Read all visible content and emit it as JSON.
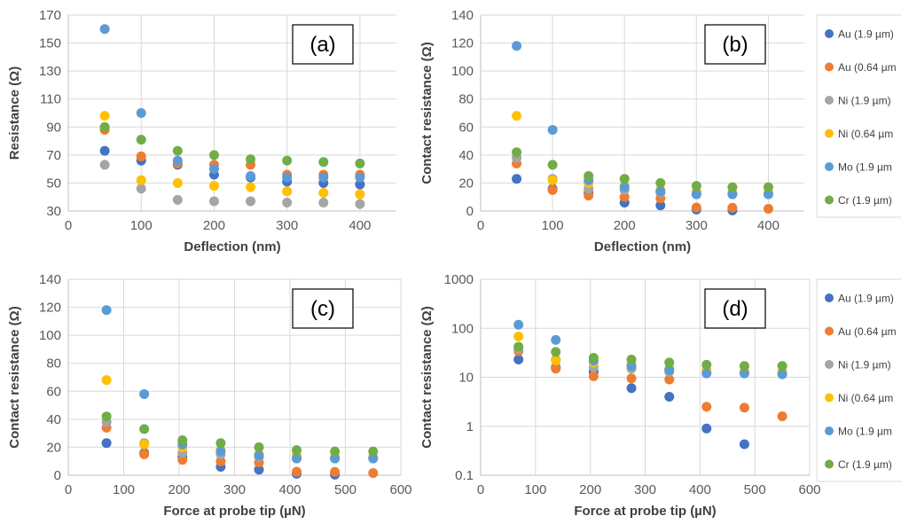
{
  "series_colors": [
    "#4472C4",
    "#ED7D31",
    "#A5A5A5",
    "#FFC000",
    "#5B9BD5",
    "#70AD47"
  ],
  "chart_data": [
    {
      "type": "scatter",
      "panel_label": "(a)",
      "xlabel": "Deflection (nm)",
      "ylabel": "Resistance (Ω)",
      "xlim": [
        0,
        450
      ],
      "ylim": [
        30,
        170
      ],
      "xticks": [
        "0",
        "100",
        "200",
        "300",
        "400"
      ],
      "yticks": [
        "30",
        "50",
        "70",
        "90",
        "110",
        "130",
        "150",
        "170"
      ],
      "grid": true,
      "log_y": false,
      "legend": [],
      "x": [
        50,
        100,
        150,
        200,
        250,
        300,
        350,
        400
      ],
      "series": [
        {
          "values": [
            73,
            66,
            63,
            56,
            54,
            51,
            50,
            49
          ]
        },
        {
          "values": [
            88,
            69,
            64,
            63,
            63,
            56,
            56,
            56
          ]
        },
        {
          "values": [
            63,
            46,
            38,
            37,
            37,
            36,
            36,
            35
          ]
        },
        {
          "values": [
            98,
            52,
            50,
            48,
            47,
            44,
            43,
            42
          ]
        },
        {
          "values": [
            160,
            100,
            66,
            60,
            55,
            54,
            54,
            54
          ]
        },
        {
          "values": [
            90,
            81,
            73,
            70,
            67,
            66,
            65,
            64
          ]
        }
      ]
    },
    {
      "type": "scatter",
      "panel_label": "(b)",
      "xlabel": "Deflection (nm)",
      "ylabel": "Contact resistance (Ω)",
      "xlim": [
        0,
        450
      ],
      "ylim": [
        0,
        140
      ],
      "xticks": [
        "0",
        "100",
        "200",
        "300",
        "400"
      ],
      "yticks": [
        "0",
        "20",
        "40",
        "60",
        "80",
        "100",
        "120",
        "140"
      ],
      "grid": true,
      "log_y": false,
      "legend": [
        "Au (1.9 µm)",
        "Au (0.64 µm",
        "Ni (1.9 µm)",
        "Ni (0.64 µm",
        "Mo (1.9 µm",
        "Cr (1.9 µm)"
      ],
      "x": [
        50,
        100,
        150,
        200,
        250,
        300,
        350,
        400
      ],
      "series": [
        {
          "values": [
            23,
            16,
            13,
            6,
            4,
            1,
            0.4,
            null
          ]
        },
        {
          "values": [
            34,
            15,
            11,
            10,
            9,
            2.5,
            2.4,
            1.6
          ]
        },
        {
          "values": [
            38,
            23,
            16,
            15,
            13,
            12,
            12,
            12
          ]
        },
        {
          "values": [
            68,
            22,
            20,
            18,
            15,
            14,
            13,
            13
          ]
        },
        {
          "values": [
            118,
            58,
            22,
            17,
            14,
            12,
            12,
            12
          ]
        },
        {
          "values": [
            42,
            33,
            25,
            23,
            20,
            18,
            17,
            17
          ]
        }
      ]
    },
    {
      "type": "scatter",
      "panel_label": "(c)",
      "xlabel": "Force at probe tip (µN)",
      "ylabel": "Contact resistance (Ω)",
      "xlim": [
        0,
        600
      ],
      "ylim": [
        0,
        140
      ],
      "xticks": [
        "0",
        "100",
        "200",
        "300",
        "400",
        "500",
        "600"
      ],
      "yticks": [
        "0",
        "20",
        "40",
        "60",
        "80",
        "100",
        "120",
        "140"
      ],
      "grid": true,
      "log_y": false,
      "legend": [],
      "x": [
        69,
        137,
        206,
        275,
        344,
        412,
        481,
        550
      ],
      "series": [
        {
          "values": [
            23,
            16,
            13,
            6,
            4,
            1,
            0.4,
            null
          ]
        },
        {
          "values": [
            34,
            15,
            11,
            10,
            9,
            2.5,
            2.4,
            1.6
          ]
        },
        {
          "values": [
            38,
            23,
            16,
            15,
            13,
            12,
            12,
            12
          ]
        },
        {
          "values": [
            68,
            22,
            20,
            18,
            15,
            14,
            13,
            13
          ]
        },
        {
          "values": [
            118,
            58,
            22,
            17,
            14,
            12,
            12,
            12
          ]
        },
        {
          "values": [
            42,
            33,
            25,
            23,
            20,
            18,
            17,
            17
          ]
        }
      ]
    },
    {
      "type": "scatter",
      "panel_label": "(d)",
      "xlabel": "Force at probe tip (µN)",
      "ylabel": "Contact resistance (Ω)",
      "xlim": [
        0,
        600
      ],
      "ylim": [
        0.1,
        1000
      ],
      "xticks": [
        "0",
        "100",
        "200",
        "300",
        "400",
        "500",
        "600"
      ],
      "yticks": [
        "0.1",
        "1",
        "10",
        "100",
        "1000"
      ],
      "grid": true,
      "log_y": true,
      "legend": [
        "Au (1.9 µm)",
        "Au (0.64 µm",
        "Ni (1.9 µm)",
        "Ni (0.64 µm",
        "Mo (1.9 µm",
        "Cr (1.9 µm)"
      ],
      "x": [
        69,
        137,
        206,
        275,
        344,
        412,
        481,
        550
      ],
      "series": [
        {
          "values": [
            23,
            16,
            13,
            6,
            4,
            0.9,
            0.43,
            null
          ]
        },
        {
          "values": [
            34,
            15,
            10.5,
            9.5,
            9,
            2.5,
            2.4,
            1.6
          ]
        },
        {
          "values": [
            38,
            23,
            16,
            15,
            13,
            12,
            12,
            12
          ]
        },
        {
          "values": [
            68,
            22,
            20,
            18,
            15,
            14,
            13,
            13
          ]
        },
        {
          "values": [
            118,
            58,
            22,
            17,
            14,
            12,
            12,
            11.5
          ]
        },
        {
          "values": [
            42,
            33,
            25,
            23,
            20,
            18,
            17,
            17
          ]
        }
      ]
    }
  ]
}
